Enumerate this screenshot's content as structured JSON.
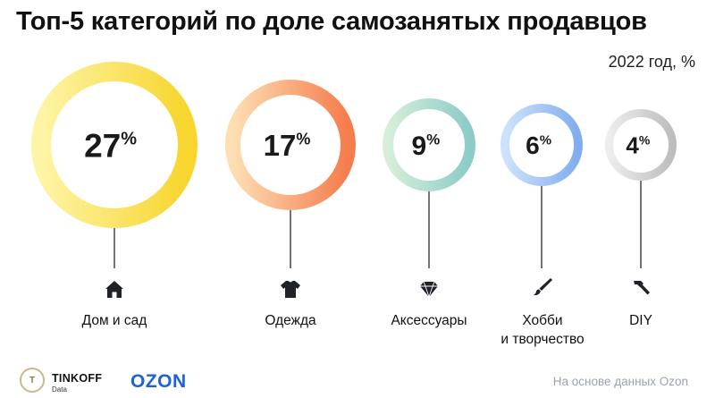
{
  "header": {
    "title": "Топ-5 категорий по доле самозанятых продавцов",
    "subtitle": "2022 год, %"
  },
  "chart_data": {
    "type": "bubble",
    "unit": "%",
    "categories": [
      "Дом и сад",
      "Одежда",
      "Аксессуары",
      "Хобби и творчество",
      "DIY"
    ],
    "values": [
      27,
      17,
      9,
      6,
      4
    ],
    "value_labels": [
      "27%",
      "17%",
      "9%",
      "6%",
      "4%"
    ],
    "icons": [
      "house-icon",
      "tshirt-icon",
      "gem-icon",
      "brush-icon",
      "hammer-icon"
    ],
    "colors": [
      [
        "#fef4a6",
        "#f7d52d"
      ],
      [
        "#fddfb3",
        "#f57c4c"
      ],
      [
        "#d6efd9",
        "#8ccbc7"
      ],
      [
        "#cde3fb",
        "#82acef"
      ],
      [
        "#ededed",
        "#bdbdbd"
      ]
    ]
  },
  "categories": {
    "home": "Дом и сад",
    "clothes": "Одежда",
    "accessories": "Аксессуары",
    "hobby_line1": "Хобби",
    "hobby_line2": "и творчество",
    "diy": "DIY"
  },
  "footer": {
    "tinkoff": "TINKOFF",
    "tinkoff_sub": "Data",
    "ozon": "OZON",
    "source": "На основе данных Ozon"
  }
}
